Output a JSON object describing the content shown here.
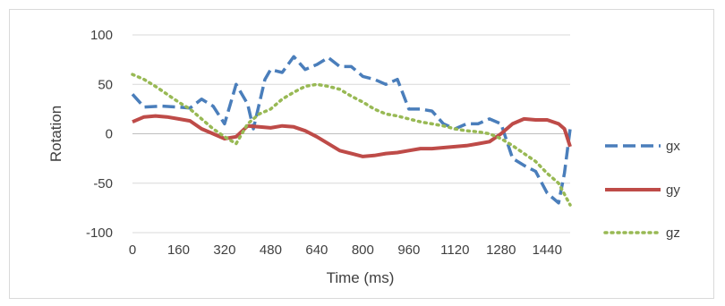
{
  "chart_data": {
    "type": "line",
    "title": "",
    "xlabel": "Time (ms)",
    "ylabel": "Rotation",
    "xlim": [
      0,
      1520
    ],
    "ylim": [
      -100,
      100
    ],
    "x_ticks": [
      "0",
      "160",
      "320",
      "480",
      "640",
      "800",
      "960",
      "1120",
      "1280",
      "1440"
    ],
    "x_tick_values": [
      0,
      160,
      320,
      480,
      640,
      800,
      960,
      1120,
      1280,
      1440
    ],
    "y_ticks": [
      "100",
      "50",
      "0",
      "-50",
      "-100"
    ],
    "y_tick_values": [
      100,
      50,
      0,
      -50,
      -100
    ],
    "grid": "horizontal",
    "legend_position": "right",
    "series": [
      {
        "name": "gx",
        "color": "#4a7ebb",
        "style": "dashed",
        "points": [
          [
            0,
            40
          ],
          [
            40,
            27
          ],
          [
            100,
            28
          ],
          [
            160,
            27
          ],
          [
            200,
            26
          ],
          [
            240,
            35
          ],
          [
            280,
            28
          ],
          [
            320,
            10
          ],
          [
            360,
            50
          ],
          [
            400,
            30
          ],
          [
            420,
            5
          ],
          [
            460,
            55
          ],
          [
            480,
            65
          ],
          [
            520,
            62
          ],
          [
            560,
            78
          ],
          [
            600,
            65
          ],
          [
            640,
            70
          ],
          [
            680,
            77
          ],
          [
            720,
            68
          ],
          [
            760,
            68
          ],
          [
            800,
            58
          ],
          [
            840,
            55
          ],
          [
            880,
            50
          ],
          [
            920,
            55
          ],
          [
            960,
            25
          ],
          [
            1000,
            25
          ],
          [
            1040,
            23
          ],
          [
            1080,
            10
          ],
          [
            1120,
            5
          ],
          [
            1160,
            10
          ],
          [
            1200,
            10
          ],
          [
            1240,
            15
          ],
          [
            1280,
            10
          ],
          [
            1320,
            -25
          ],
          [
            1360,
            -32
          ],
          [
            1400,
            -38
          ],
          [
            1440,
            -60
          ],
          [
            1480,
            -70
          ],
          [
            1500,
            -40
          ],
          [
            1520,
            5
          ]
        ]
      },
      {
        "name": "gy",
        "color": "#be4b48",
        "style": "solid",
        "points": [
          [
            0,
            12
          ],
          [
            40,
            17
          ],
          [
            80,
            18
          ],
          [
            120,
            17
          ],
          [
            160,
            15
          ],
          [
            200,
            13
          ],
          [
            240,
            5
          ],
          [
            280,
            0
          ],
          [
            320,
            -5
          ],
          [
            360,
            -3
          ],
          [
            400,
            8
          ],
          [
            440,
            7
          ],
          [
            480,
            6
          ],
          [
            520,
            8
          ],
          [
            560,
            7
          ],
          [
            600,
            3
          ],
          [
            640,
            -3
          ],
          [
            680,
            -10
          ],
          [
            720,
            -17
          ],
          [
            760,
            -20
          ],
          [
            800,
            -23
          ],
          [
            840,
            -22
          ],
          [
            880,
            -20
          ],
          [
            920,
            -19
          ],
          [
            960,
            -17
          ],
          [
            1000,
            -15
          ],
          [
            1040,
            -15
          ],
          [
            1080,
            -14
          ],
          [
            1120,
            -13
          ],
          [
            1160,
            -12
          ],
          [
            1200,
            -10
          ],
          [
            1240,
            -8
          ],
          [
            1280,
            0
          ],
          [
            1320,
            10
          ],
          [
            1360,
            15
          ],
          [
            1400,
            14
          ],
          [
            1440,
            14
          ],
          [
            1480,
            10
          ],
          [
            1500,
            5
          ],
          [
            1520,
            -13
          ]
        ]
      },
      {
        "name": "gz",
        "color": "#98b954",
        "style": "dotted",
        "points": [
          [
            0,
            60
          ],
          [
            40,
            55
          ],
          [
            80,
            48
          ],
          [
            120,
            40
          ],
          [
            160,
            32
          ],
          [
            200,
            25
          ],
          [
            240,
            15
          ],
          [
            280,
            5
          ],
          [
            320,
            -3
          ],
          [
            360,
            -10
          ],
          [
            400,
            10
          ],
          [
            440,
            20
          ],
          [
            480,
            25
          ],
          [
            520,
            35
          ],
          [
            560,
            42
          ],
          [
            600,
            48
          ],
          [
            640,
            50
          ],
          [
            680,
            48
          ],
          [
            720,
            45
          ],
          [
            760,
            38
          ],
          [
            800,
            32
          ],
          [
            840,
            25
          ],
          [
            880,
            20
          ],
          [
            920,
            18
          ],
          [
            960,
            15
          ],
          [
            1000,
            12
          ],
          [
            1040,
            10
          ],
          [
            1080,
            8
          ],
          [
            1120,
            5
          ],
          [
            1160,
            3
          ],
          [
            1200,
            2
          ],
          [
            1240,
            0
          ],
          [
            1280,
            -5
          ],
          [
            1320,
            -12
          ],
          [
            1360,
            -20
          ],
          [
            1400,
            -28
          ],
          [
            1440,
            -40
          ],
          [
            1480,
            -50
          ],
          [
            1520,
            -72
          ]
        ]
      }
    ]
  }
}
